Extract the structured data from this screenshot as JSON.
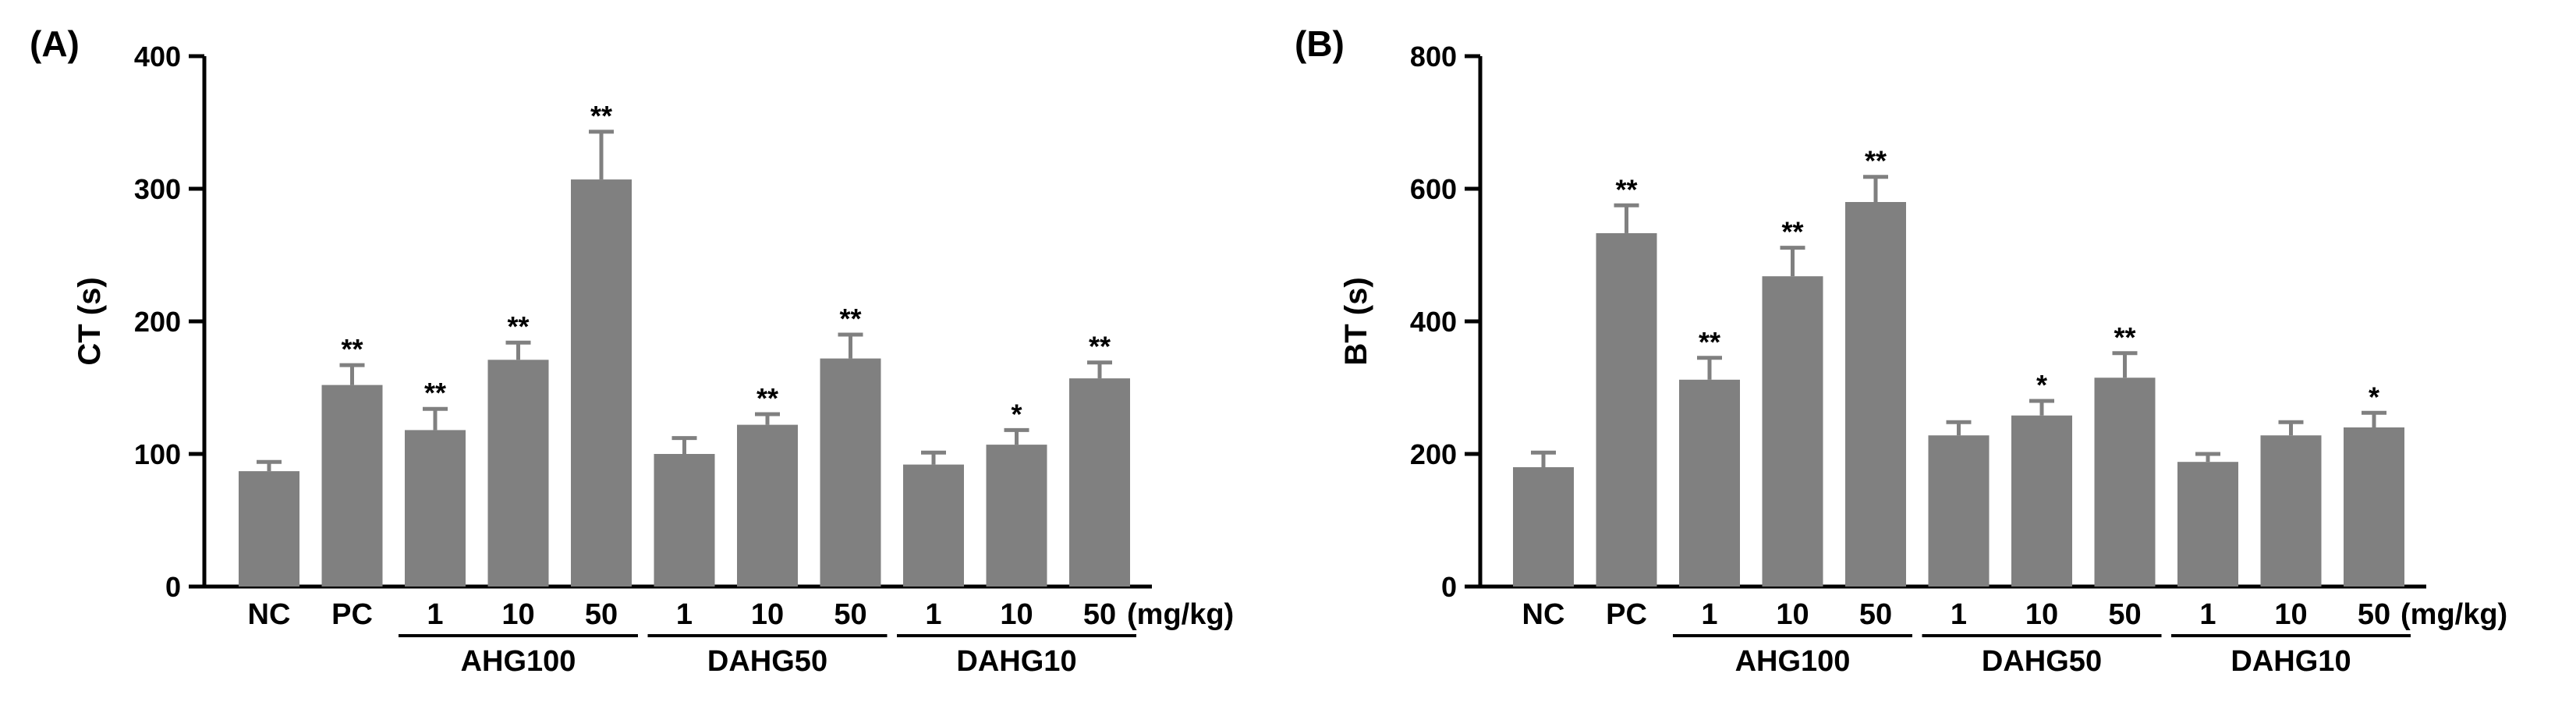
{
  "chart_data": [
    {
      "type": "bar",
      "panel_label": "(A)",
      "ylabel": "CT (s)",
      "ylim": [
        0,
        400
      ],
      "yticks": [
        "0",
        "100",
        "200",
        "300",
        "400"
      ],
      "unit_label": "(mg/kg)",
      "categories": [
        "NC",
        "PC",
        "1",
        "10",
        "50",
        "1",
        "10",
        "50",
        "1",
        "10",
        "50"
      ],
      "groups": [
        {
          "label": "AHG100",
          "indices": [
            2,
            3,
            4
          ]
        },
        {
          "label": "DAHG50",
          "indices": [
            5,
            6,
            7
          ]
        },
        {
          "label": "DAHG10",
          "indices": [
            8,
            9,
            10
          ]
        }
      ],
      "values": [
        87,
        152,
        118,
        171,
        307,
        100,
        122,
        172,
        92,
        107,
        157
      ],
      "errors": [
        7,
        15,
        16,
        13,
        36,
        12,
        8,
        18,
        9,
        11,
        12
      ],
      "significance": [
        "",
        "**",
        "**",
        "**",
        "**",
        "",
        "**",
        "**",
        "",
        "*",
        "**"
      ]
    },
    {
      "type": "bar",
      "panel_label": "(B)",
      "ylabel": "BT (s)",
      "ylim": [
        0,
        800
      ],
      "yticks": [
        "0",
        "200",
        "400",
        "600",
        "800"
      ],
      "unit_label": "(mg/kg)",
      "categories": [
        "NC",
        "PC",
        "1",
        "10",
        "50",
        "1",
        "10",
        "50",
        "1",
        "10",
        "50"
      ],
      "groups": [
        {
          "label": "AHG100",
          "indices": [
            2,
            3,
            4
          ]
        },
        {
          "label": "DAHG50",
          "indices": [
            5,
            6,
            7
          ]
        },
        {
          "label": "DAHG10",
          "indices": [
            8,
            9,
            10
          ]
        }
      ],
      "values": [
        180,
        533,
        312,
        468,
        580,
        228,
        258,
        315,
        188,
        228,
        240
      ],
      "errors": [
        22,
        42,
        33,
        43,
        38,
        20,
        22,
        37,
        12,
        20,
        22
      ],
      "significance": [
        "",
        "**",
        "**",
        "**",
        "**",
        "",
        "*",
        "**",
        "",
        "",
        "*"
      ]
    }
  ]
}
